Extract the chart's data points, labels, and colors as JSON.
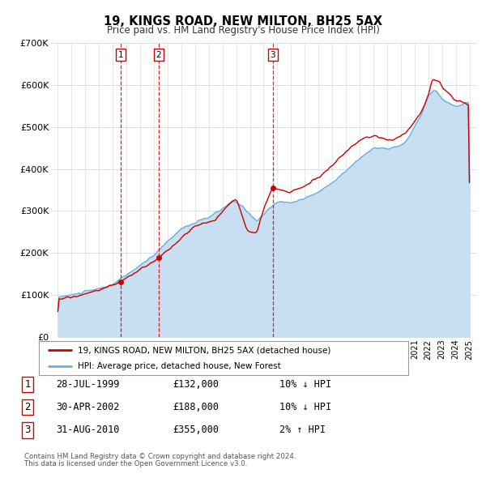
{
  "title": "19, KINGS ROAD, NEW MILTON, BH25 5AX",
  "subtitle": "Price paid vs. HM Land Registry's House Price Index (HPI)",
  "ylim": [
    0,
    700000
  ],
  "yticks": [
    0,
    100000,
    200000,
    300000,
    400000,
    500000,
    600000,
    700000
  ],
  "ytick_labels": [
    "£0",
    "£100K",
    "£200K",
    "£300K",
    "£400K",
    "£500K",
    "£600K",
    "£700K"
  ],
  "plot_bg_color": "#ffffff",
  "hpi_color": "#6aacde",
  "hpi_fill_color": "#c8dff2",
  "price_color": "#cc0000",
  "grid_color": "#dddddd",
  "transactions": [
    {
      "label": 1,
      "date_num": 1999.57,
      "price": 132000
    },
    {
      "label": 2,
      "date_num": 2002.33,
      "price": 188000
    },
    {
      "label": 3,
      "date_num": 2010.66,
      "price": 355000
    }
  ],
  "legend_price_label": "19, KINGS ROAD, NEW MILTON, BH25 5AX (detached house)",
  "legend_hpi_label": "HPI: Average price, detached house, New Forest",
  "footer1": "Contains HM Land Registry data © Crown copyright and database right 2024.",
  "footer2": "This data is licensed under the Open Government Licence v3.0.",
  "table_rows": [
    {
      "num": 1,
      "date": "28-JUL-1999",
      "price": "£132,000",
      "pct": "10% ↓ HPI"
    },
    {
      "num": 2,
      "date": "30-APR-2002",
      "price": "£188,000",
      "pct": "10% ↓ HPI"
    },
    {
      "num": 3,
      "date": "31-AUG-2010",
      "price": "£355,000",
      "pct": "2% ↑ HPI"
    }
  ]
}
